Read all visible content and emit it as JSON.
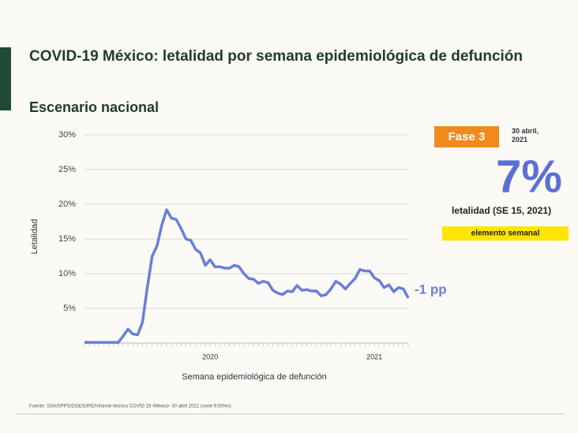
{
  "chart_data": {
    "type": "line",
    "title": "COVID-19 México: letalidad por semana epidemiológica de defunción",
    "subtitle": "Escenario nacional",
    "x_label": "Semana epidemiológica de defunción",
    "y_label": "Letalidad",
    "categories": [
      null,
      null,
      null,
      null,
      null,
      null,
      null,
      null,
      null,
      null,
      null,
      null,
      null,
      null,
      null,
      null,
      null,
      null,
      null,
      null,
      null,
      null,
      null,
      null,
      null,
      null,
      null,
      null,
      null,
      null,
      null,
      null,
      null,
      null,
      null,
      null,
      null,
      null,
      null,
      null,
      null,
      null,
      null,
      null,
      null,
      null,
      null,
      null,
      null,
      null,
      null,
      null,
      null,
      null,
      null,
      null,
      null,
      null,
      null,
      null,
      null,
      null,
      null,
      null,
      null,
      null,
      null,
      null
    ],
    "values": [
      0.1,
      0.1,
      0.1,
      0.1,
      0.1,
      0.1,
      0.1,
      0.1,
      1.0,
      2.0,
      1.3,
      1.2,
      3,
      8,
      12.5,
      14,
      17,
      19.2,
      18,
      17.8,
      16.5,
      15,
      14.8,
      13.5,
      13,
      11.2,
      12,
      11,
      11,
      10.8,
      10.8,
      11.2,
      11,
      10,
      9.3,
      9.2,
      8.6,
      8.9,
      8.7,
      7.6,
      7.2,
      7,
      7.5,
      7.4,
      8.3,
      7.6,
      7.7,
      7.5,
      7.5,
      6.8,
      7,
      7.8,
      8.9,
      8.5,
      7.8,
      8.6,
      9.3,
      10.6,
      10.4,
      10.4,
      9.4,
      9,
      8,
      8.4,
      7.4,
      8,
      7.8,
      6.5
    ],
    "color": "#6a7fd8",
    "year_labels": [
      {
        "value": 26,
        "label": "2020"
      },
      {
        "value": 60,
        "label": "2021"
      }
    ],
    "ylim": [
      0,
      30
    ],
    "yticks": [
      {
        "value": 5,
        "label": "5%"
      },
      {
        "value": 10,
        "label": "10%"
      },
      {
        "value": 15,
        "label": "15%"
      },
      {
        "value": 20,
        "label": "20%"
      },
      {
        "value": 25,
        "label": "25%"
      },
      {
        "value": 30,
        "label": "30%"
      }
    ],
    "grid": true,
    "annotation": "-1 pp"
  },
  "panel": {
    "phase": "Fase 3",
    "date": "30 abril, 2021",
    "big_value": "7%",
    "caption": "letalidad (SE 15, 2021)",
    "badge": "elemento semanal"
  },
  "source": "Fuente: SSA/SPPS/DGE/DIRE/Informe técnico COVID-19 /México- 30 abril 2021 (corte 9:00hrs)"
}
